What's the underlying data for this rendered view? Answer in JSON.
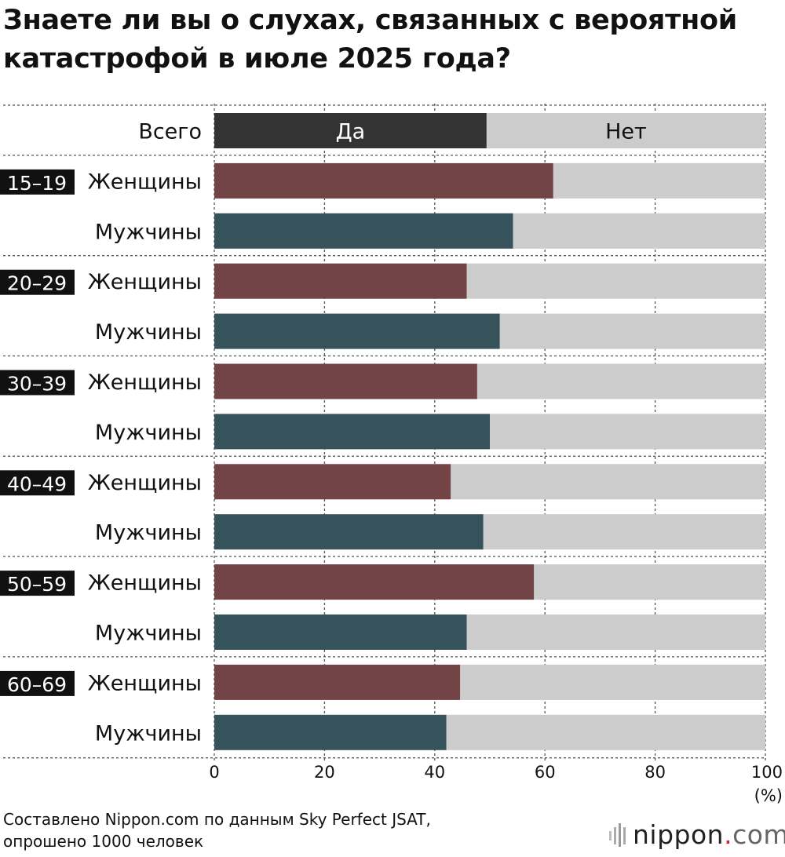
{
  "title": "Знаете ли вы о слухах, связанных с вероятной катастрофой в июле 2025 года?",
  "source_line1": "Составлено Nippon.com по данным Sky Perfect JSAT,",
  "source_line2": "опрошено 1000 человек",
  "logo": {
    "name": "nippon",
    "dot": ".",
    "suffix": "com"
  },
  "colors": {
    "total_yes": "#333333",
    "women": "#734445",
    "men": "#36525a",
    "no": "#cccccc",
    "grid": "#555555",
    "badge": "#111111"
  },
  "chart_data": {
    "type": "bar",
    "orientation": "horizontal",
    "stacked": true,
    "segment_labels": [
      "Да",
      "Нет"
    ],
    "x_ticks": [
      0,
      20,
      40,
      60,
      80,
      100
    ],
    "x_unit": "(%)",
    "xlim": [
      0,
      100
    ],
    "rows": [
      {
        "group": "",
        "label": "Всего",
        "kind": "total",
        "yes": 49.4
      },
      {
        "group": "15–19",
        "label": "Женщины",
        "kind": "women",
        "yes": 61.5
      },
      {
        "group": "",
        "label": "Мужчины",
        "kind": "men",
        "yes": 54.2
      },
      {
        "group": "20–29",
        "label": "Женщины",
        "kind": "women",
        "yes": 45.8
      },
      {
        "group": "",
        "label": "Мужчины",
        "kind": "men",
        "yes": 51.8
      },
      {
        "group": "30–39",
        "label": "Женщины",
        "kind": "women",
        "yes": 47.7
      },
      {
        "group": "",
        "label": "Мужчины",
        "kind": "men",
        "yes": 50.0
      },
      {
        "group": "40–49",
        "label": "Женщины",
        "kind": "women",
        "yes": 42.9
      },
      {
        "group": "",
        "label": "Мужчины",
        "kind": "men",
        "yes": 48.8
      },
      {
        "group": "50–59",
        "label": "Женщины",
        "kind": "women",
        "yes": 58.0
      },
      {
        "group": "",
        "label": "Мужчины",
        "kind": "men",
        "yes": 45.8
      },
      {
        "group": "60–69",
        "label": "Женщины",
        "kind": "women",
        "yes": 44.6
      },
      {
        "group": "",
        "label": "Мужчины",
        "kind": "men",
        "yes": 42.1
      }
    ]
  }
}
